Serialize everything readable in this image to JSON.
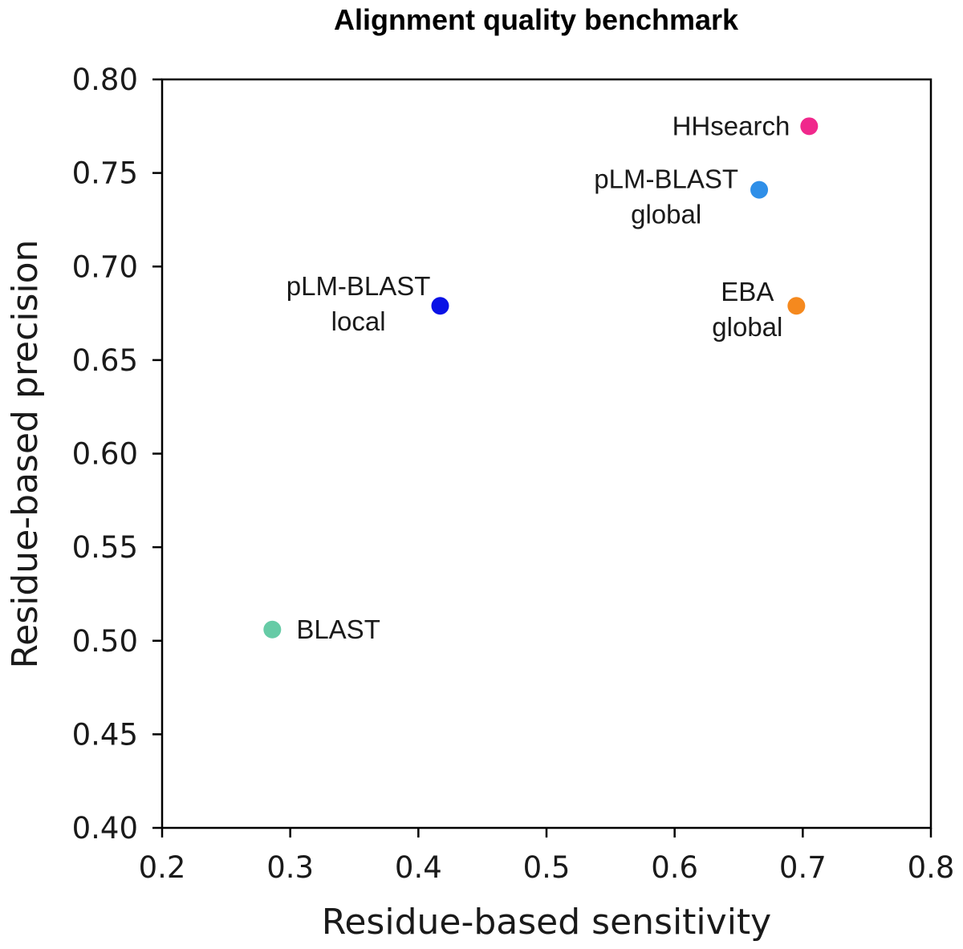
{
  "chart_data": {
    "type": "scatter",
    "title": "Alignment quality benchmark",
    "xlabel": "Residue-based sensitivity",
    "ylabel": "Residue-based precision",
    "xlim": [
      0.2,
      0.8
    ],
    "ylim": [
      0.4,
      0.8
    ],
    "xticks": [
      "0.2",
      "0.3",
      "0.4",
      "0.5",
      "0.6",
      "0.7",
      "0.8"
    ],
    "yticks": [
      "0.40",
      "0.45",
      "0.50",
      "0.55",
      "0.60",
      "0.65",
      "0.70",
      "0.75",
      "0.80"
    ],
    "grid": false,
    "legend": "none",
    "points": [
      {
        "label_lines": [
          "HHsearch"
        ],
        "x": 0.705,
        "y": 0.775,
        "color": "#f0288c"
      },
      {
        "label_lines": [
          "pLM-BLAST",
          "global"
        ],
        "x": 0.666,
        "y": 0.741,
        "color": "#2f8fe8"
      },
      {
        "label_lines": [
          "pLM-BLAST",
          "local"
        ],
        "x": 0.417,
        "y": 0.679,
        "color": "#0a12e6"
      },
      {
        "label_lines": [
          "EBA",
          "global"
        ],
        "x": 0.695,
        "y": 0.679,
        "color": "#f5891e"
      },
      {
        "label_lines": [
          "BLAST"
        ],
        "x": 0.286,
        "y": 0.506,
        "color": "#66cba6"
      }
    ]
  }
}
